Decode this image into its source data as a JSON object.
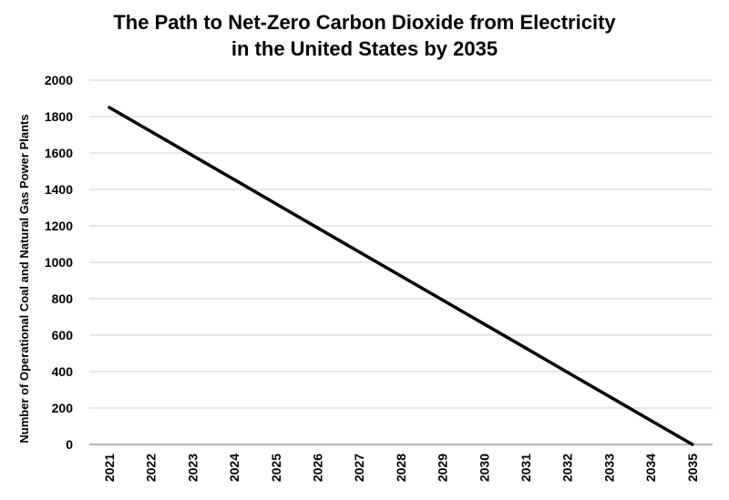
{
  "chart_data": {
    "type": "line",
    "title": [
      "The Path to Net-Zero Carbon Dioxide from Electricity",
      "in the United States by 2035"
    ],
    "xlabel": "",
    "ylabel": "Number of Operational Coal and Natural Gas Power Plants",
    "x": [
      "2021",
      "2022",
      "2023",
      "2024",
      "2025",
      "2026",
      "2027",
      "2028",
      "2029",
      "2030",
      "2031",
      "2032",
      "2033",
      "2034",
      "2035"
    ],
    "y_ticks": [
      "0",
      "200",
      "400",
      "600",
      "800",
      "1000",
      "1200",
      "1400",
      "1600",
      "1800",
      "2000"
    ],
    "ylim": [
      0,
      2000
    ],
    "grid": true,
    "series": [
      {
        "values": [
          1850,
          1718,
          1586,
          1454,
          1321,
          1189,
          1057,
          925,
          793,
          661,
          529,
          396,
          264,
          132,
          0
        ]
      }
    ],
    "line_color": "#000000",
    "grid_color": "#d0d0d0"
  }
}
